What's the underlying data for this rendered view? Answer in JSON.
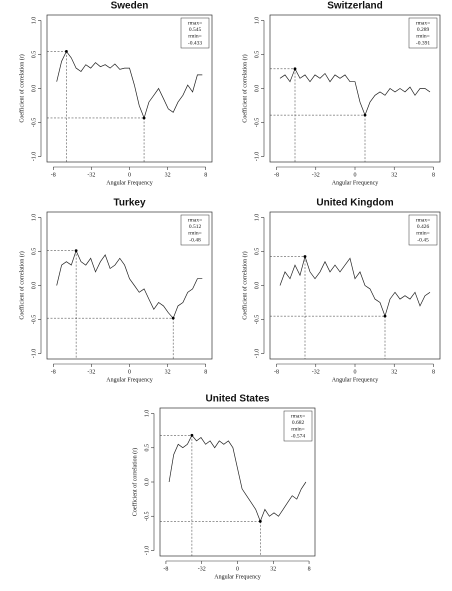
{
  "chart_data": [
    {
      "type": "line",
      "title": "Sweden",
      "y_label": "Coefficient of correlation (r)",
      "x_label": "Angular Frequency",
      "color": "#222222",
      "xlim": [
        -3.4,
        3.4
      ],
      "ylim": [
        -1.08,
        1.08
      ],
      "xticks": [
        {
          "value": -3.14,
          "label": "-8"
        },
        {
          "value": -1.57,
          "label": "-32"
        },
        {
          "value": 0,
          "label": "0"
        },
        {
          "value": 1.57,
          "label": "32"
        },
        {
          "value": 3.14,
          "label": "8"
        }
      ],
      "yticks": [
        {
          "value": -1,
          "label": "-1.0"
        },
        {
          "value": -0.5,
          "label": "-0.5"
        },
        {
          "value": 0,
          "label": "0.0"
        },
        {
          "value": 0.5,
          "label": "0.5"
        },
        {
          "value": 1,
          "label": "1.0"
        }
      ],
      "x": [
        -3,
        -2.8,
        -2.6,
        -2.4,
        -2.2,
        -2,
        -1.8,
        -1.6,
        -1.4,
        -1.2,
        -1,
        -0.8,
        -0.6,
        -0.4,
        -0.2,
        0,
        0.2,
        0.4,
        0.6,
        0.8,
        1,
        1.2,
        1.4,
        1.6,
        1.8,
        2,
        2.2,
        2.4,
        2.6,
        2.8,
        3
      ],
      "values": [
        0.1,
        0.4,
        0.545,
        0.45,
        0.3,
        0.25,
        0.35,
        0.3,
        0.38,
        0.32,
        0.35,
        0.3,
        0.36,
        0.28,
        0.3,
        0.3,
        0.05,
        -0.25,
        -0.433,
        -0.2,
        -0.1,
        0.0,
        -0.15,
        -0.3,
        -0.35,
        -0.2,
        -0.1,
        0.05,
        -0.05,
        0.2,
        0.2
      ],
      "annotation": {
        "rmax_label": "rmax=",
        "rmax": 0.545,
        "rmin_label": "rmin=",
        "rmin": -0.433,
        "rmax_x": -2.6,
        "rmin_x": 0.6
      }
    },
    {
      "type": "line",
      "title": "Switzerland",
      "y_label": "Coefficient of correlation (r)",
      "x_label": "Angular Frequency",
      "color": "#222222",
      "xlim": [
        -3.4,
        3.4
      ],
      "ylim": [
        -1.08,
        1.08
      ],
      "xticks": [
        {
          "value": -3.14,
          "label": "-8"
        },
        {
          "value": -1.57,
          "label": "-32"
        },
        {
          "value": 0,
          "label": "0"
        },
        {
          "value": 1.57,
          "label": "32"
        },
        {
          "value": 3.14,
          "label": "8"
        }
      ],
      "yticks": [
        {
          "value": -1,
          "label": "-1.0"
        },
        {
          "value": -0.5,
          "label": "-0.5"
        },
        {
          "value": 0,
          "label": "0.0"
        },
        {
          "value": 0.5,
          "label": "0.5"
        },
        {
          "value": 1,
          "label": "1.0"
        }
      ],
      "x": [
        -3,
        -2.8,
        -2.6,
        -2.4,
        -2.2,
        -2,
        -1.8,
        -1.6,
        -1.4,
        -1.2,
        -1,
        -0.8,
        -0.6,
        -0.4,
        -0.2,
        0,
        0.2,
        0.4,
        0.6,
        0.8,
        1,
        1.2,
        1.4,
        1.6,
        1.8,
        2,
        2.2,
        2.4,
        2.6,
        2.8,
        3
      ],
      "values": [
        0.15,
        0.2,
        0.1,
        0.289,
        0.15,
        0.2,
        0.1,
        0.2,
        0.15,
        0.22,
        0.1,
        0.2,
        0.15,
        0.2,
        0.1,
        0.1,
        -0.2,
        -0.391,
        -0.2,
        -0.1,
        -0.05,
        -0.1,
        0.0,
        -0.05,
        0.0,
        -0.05,
        0.02,
        -0.1,
        0.0,
        0.0,
        -0.05
      ],
      "annotation": {
        "rmax_label": "rmax=",
        "rmax": 0.289,
        "rmin_label": "rmin=",
        "rmin": -0.391,
        "rmax_x": -2.4,
        "rmin_x": 0.4
      }
    },
    {
      "type": "line",
      "title": "Turkey",
      "y_label": "Coefficient of correlation (r)",
      "x_label": "Angular Frequency",
      "color": "#222222",
      "xlim": [
        -3.4,
        3.4
      ],
      "ylim": [
        -1.08,
        1.08
      ],
      "xticks": [
        {
          "value": -3.14,
          "label": "-8"
        },
        {
          "value": -1.57,
          "label": "-32"
        },
        {
          "value": 0,
          "label": "0"
        },
        {
          "value": 1.57,
          "label": "32"
        },
        {
          "value": 3.14,
          "label": "8"
        }
      ],
      "yticks": [
        {
          "value": -1,
          "label": "-1.0"
        },
        {
          "value": -0.5,
          "label": "-0.5"
        },
        {
          "value": 0,
          "label": "0.0"
        },
        {
          "value": 0.5,
          "label": "0.5"
        },
        {
          "value": 1,
          "label": "1.0"
        }
      ],
      "x": [
        -3,
        -2.8,
        -2.6,
        -2.4,
        -2.2,
        -2,
        -1.8,
        -1.6,
        -1.4,
        -1.2,
        -1,
        -0.8,
        -0.6,
        -0.4,
        -0.2,
        0,
        0.2,
        0.4,
        0.6,
        0.8,
        1,
        1.2,
        1.4,
        1.6,
        1.8,
        2,
        2.2,
        2.4,
        2.6,
        2.8,
        3
      ],
      "values": [
        0.0,
        0.3,
        0.35,
        0.3,
        0.512,
        0.35,
        0.3,
        0.4,
        0.2,
        0.35,
        0.45,
        0.25,
        0.3,
        0.4,
        0.3,
        0.1,
        0.0,
        -0.1,
        -0.05,
        -0.2,
        -0.35,
        -0.25,
        -0.3,
        -0.4,
        -0.48,
        -0.3,
        -0.25,
        -0.1,
        -0.05,
        0.1,
        0.1
      ],
      "annotation": {
        "rmax_label": "rmax=",
        "rmax": 0.512,
        "rmin_label": "rmin=",
        "rmin": -0.48,
        "rmax_x": -2.2,
        "rmin_x": 1.8
      }
    },
    {
      "type": "line",
      "title": "United Kingdom",
      "y_label": "Coefficient of correlation (r)",
      "x_label": "Angular Frequency",
      "color": "#222222",
      "xlim": [
        -3.4,
        3.4
      ],
      "ylim": [
        -1.08,
        1.08
      ],
      "xticks": [
        {
          "value": -3.14,
          "label": "-8"
        },
        {
          "value": -1.57,
          "label": "-32"
        },
        {
          "value": 0,
          "label": "0"
        },
        {
          "value": 1.57,
          "label": "32"
        },
        {
          "value": 3.14,
          "label": "8"
        }
      ],
      "yticks": [
        {
          "value": -1,
          "label": "-1.0"
        },
        {
          "value": -0.5,
          "label": "-0.5"
        },
        {
          "value": 0,
          "label": "0.0"
        },
        {
          "value": 0.5,
          "label": "0.5"
        },
        {
          "value": 1,
          "label": "1.0"
        }
      ],
      "x": [
        -3,
        -2.8,
        -2.6,
        -2.4,
        -2.2,
        -2,
        -1.8,
        -1.6,
        -1.4,
        -1.2,
        -1,
        -0.8,
        -0.6,
        -0.4,
        -0.2,
        0,
        0.2,
        0.4,
        0.6,
        0.8,
        1,
        1.2,
        1.4,
        1.6,
        1.8,
        2,
        2.2,
        2.4,
        2.6,
        2.8,
        3
      ],
      "values": [
        0.0,
        0.2,
        0.1,
        0.3,
        0.15,
        0.426,
        0.2,
        0.1,
        0.2,
        0.35,
        0.2,
        0.3,
        0.2,
        0.3,
        0.4,
        0.1,
        0.2,
        0.0,
        -0.05,
        -0.2,
        -0.25,
        -0.45,
        -0.2,
        -0.1,
        -0.2,
        -0.15,
        -0.2,
        -0.1,
        -0.3,
        -0.15,
        -0.1
      ],
      "annotation": {
        "rmax_label": "rmax=",
        "rmax": 0.426,
        "rmin_label": "rmin=",
        "rmin": -0.45,
        "rmax_x": -2.0,
        "rmin_x": 1.2
      }
    },
    {
      "type": "line",
      "title": "United States",
      "y_label": "Coefficient of correlation (r)",
      "x_label": "Angular Frequency",
      "color": "#222222",
      "xlim": [
        -3.4,
        3.4
      ],
      "ylim": [
        -1.08,
        1.08
      ],
      "xticks": [
        {
          "value": -3.14,
          "label": "-8"
        },
        {
          "value": -1.57,
          "label": "-32"
        },
        {
          "value": 0,
          "label": "0"
        },
        {
          "value": 1.57,
          "label": "32"
        },
        {
          "value": 3.14,
          "label": "8"
        }
      ],
      "yticks": [
        {
          "value": -1,
          "label": "-1.0"
        },
        {
          "value": -0.5,
          "label": "-0.5"
        },
        {
          "value": 0,
          "label": "0.0"
        },
        {
          "value": 0.5,
          "label": "0.5"
        },
        {
          "value": 1,
          "label": "1.0"
        }
      ],
      "x": [
        -3,
        -2.8,
        -2.6,
        -2.4,
        -2.2,
        -2,
        -1.8,
        -1.6,
        -1.4,
        -1.2,
        -1,
        -0.8,
        -0.6,
        -0.4,
        -0.2,
        0,
        0.2,
        0.4,
        0.6,
        0.8,
        1,
        1.2,
        1.4,
        1.6,
        1.8,
        2,
        2.2,
        2.4,
        2.6,
        2.8,
        3
      ],
      "values": [
        0.0,
        0.4,
        0.55,
        0.5,
        0.55,
        0.682,
        0.6,
        0.65,
        0.55,
        0.6,
        0.5,
        0.6,
        0.55,
        0.6,
        0.5,
        0.2,
        -0.1,
        -0.2,
        -0.3,
        -0.4,
        -0.574,
        -0.4,
        -0.5,
        -0.45,
        -0.5,
        -0.4,
        -0.3,
        -0.2,
        -0.25,
        -0.1,
        0.0
      ],
      "annotation": {
        "rmax_label": "rmax=",
        "rmax": 0.682,
        "rmin_label": "rmin=",
        "rmin": -0.574,
        "rmax_x": -2.0,
        "rmin_x": 1.0
      }
    }
  ]
}
